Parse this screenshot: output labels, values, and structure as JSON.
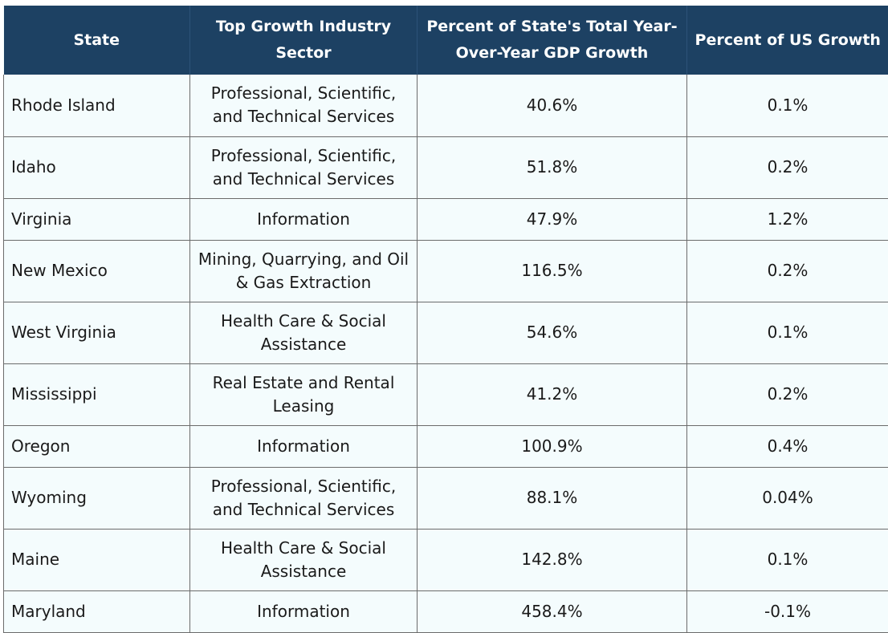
{
  "table": {
    "headers": [
      "State",
      "Top Growth Industry Sector",
      "Percent of State's Total Year-Over-Year GDP Growth",
      "Percent of US Growth"
    ],
    "rows": [
      {
        "state": "Rhode Island",
        "sector": "Professional, Scientific, and Technical Services",
        "state_growth": "40.6%",
        "us_growth": "0.1%"
      },
      {
        "state": "Idaho",
        "sector": "Professional, Scientific, and Technical Services",
        "state_growth": "51.8%",
        "us_growth": "0.2%"
      },
      {
        "state": "Virginia",
        "sector": "Information",
        "state_growth": "47.9%",
        "us_growth": "1.2%"
      },
      {
        "state": "New Mexico",
        "sector": "Mining, Quarrying, and Oil & Gas Extraction",
        "state_growth": "116.5%",
        "us_growth": "0.2%"
      },
      {
        "state": "West Virginia",
        "sector": "Health Care & Social Assistance",
        "state_growth": "54.6%",
        "us_growth": "0.1%"
      },
      {
        "state": "Mississippi",
        "sector": "Real Estate and Rental Leasing",
        "state_growth": "41.2%",
        "us_growth": "0.2%"
      },
      {
        "state": "Oregon",
        "sector": "Information",
        "state_growth": "100.9%",
        "us_growth": "0.4%"
      },
      {
        "state": "Wyoming",
        "sector": "Professional, Scientific, and Technical Services",
        "state_growth": "88.1%",
        "us_growth": "0.04%"
      },
      {
        "state": "Maine",
        "sector": "Health Care & Social Assistance",
        "state_growth": "142.8%",
        "us_growth": "0.1%"
      },
      {
        "state": "Maryland",
        "sector": "Information",
        "state_growth": "458.4%",
        "us_growth": "-0.1%"
      }
    ]
  },
  "colors": {
    "header_background": "#1d4163",
    "header_text": "#ffffff",
    "row_background": "#f4fcfd",
    "border": "#6b6b6b"
  }
}
